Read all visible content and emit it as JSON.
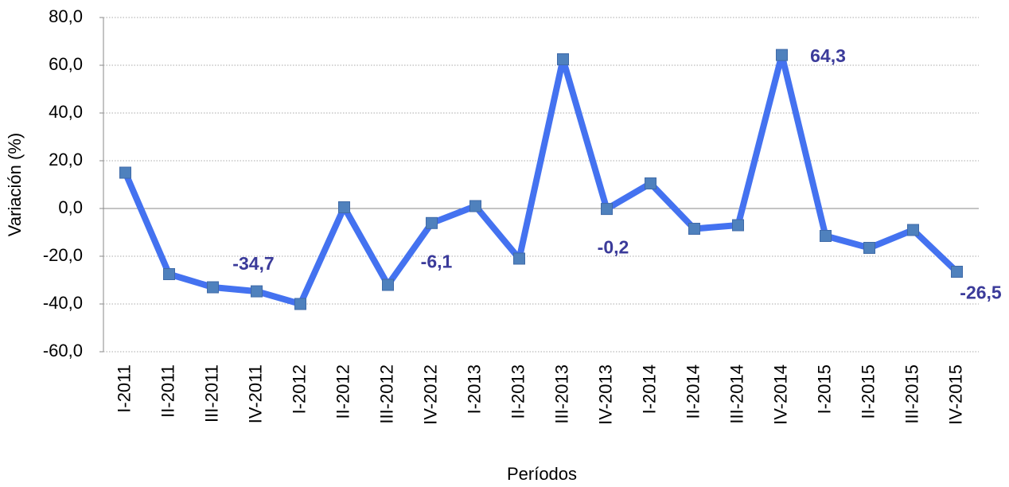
{
  "chart_data": {
    "type": "line",
    "x_label": "Períodos",
    "y_label": "Variación (%)",
    "categories": [
      "I-2011",
      "II-2011",
      "III-2011",
      "IV-2011",
      "I-2012",
      "II-2012",
      "III-2012",
      "IV-2012",
      "I-2013",
      "II-2013",
      "III-2013",
      "IV-2013",
      "I-2014",
      "II-2014",
      "III-2014",
      "IV-2014",
      "I-2015",
      "II-2015",
      "III-2015",
      "IV-2015"
    ],
    "values": [
      15,
      -27.5,
      -33,
      -34.7,
      -40,
      0.5,
      -32,
      -6.1,
      1,
      -21,
      62.5,
      -0.2,
      10.5,
      -8.5,
      -7,
      64.3,
      -11.5,
      -16.5,
      -9,
      -26.5
    ],
    "value_labels": [
      null,
      null,
      null,
      "-34,7",
      null,
      null,
      null,
      "-6,1",
      null,
      null,
      null,
      "-0,2",
      null,
      null,
      null,
      "64,3",
      null,
      null,
      null,
      "-26,5"
    ],
    "color": "#4472f0",
    "marker_color": "#4f81bd",
    "ylim": [
      -60,
      80
    ],
    "yticks": [
      {
        "value": -60,
        "label": "-60,0"
      },
      {
        "value": -40,
        "label": "-40,0"
      },
      {
        "value": -20,
        "label": "-20,0"
      },
      {
        "value": 0,
        "label": "0,0"
      },
      {
        "value": 20,
        "label": "20,0"
      },
      {
        "value": 40,
        "label": "40,0"
      },
      {
        "value": 60,
        "label": "60,0"
      },
      {
        "value": 80,
        "label": "80,0"
      }
    ],
    "grid": true
  }
}
